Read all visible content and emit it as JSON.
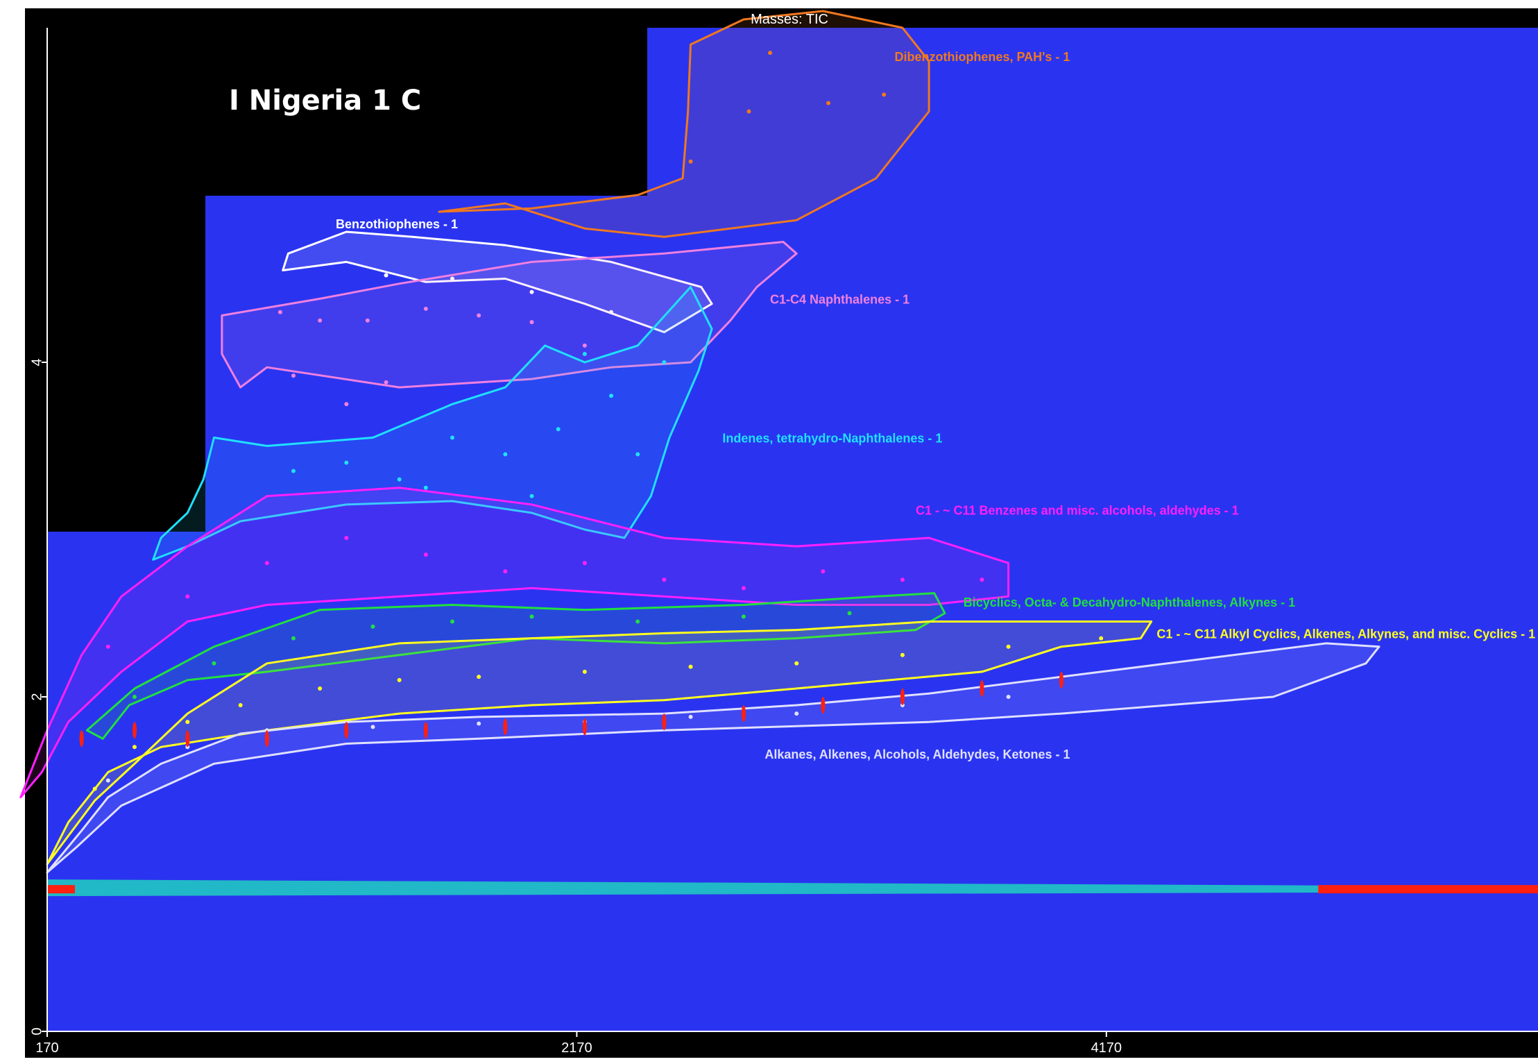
{
  "header": {
    "masses_label": "Masses: TIC"
  },
  "sample": {
    "name": "I Nigeria 1 C"
  },
  "colors": {
    "background": "#2a34f0",
    "frame": "#000000",
    "axis": "#ffffff"
  },
  "chart_data": {
    "type": "heatmap",
    "title": "Masses: TIC",
    "xlabel": "",
    "ylabel": "",
    "xlim": [
      170,
      5800
    ],
    "ylim": [
      0,
      6
    ],
    "x_ticks": [
      {
        "value": 170,
        "label": "170"
      },
      {
        "value": 2170,
        "label": "2170"
      },
      {
        "value": 4170,
        "label": "4170"
      }
    ],
    "y_ticks": [
      {
        "value": 0,
        "label": "0"
      },
      {
        "value": 2,
        "label": "2"
      },
      {
        "value": 4,
        "label": "4"
      }
    ],
    "grid": false,
    "column_bleed": {
      "line_y": 0.85,
      "hot_start_x": 4970
    },
    "regions": [
      {
        "name": "Dibenzothiophenes, PAH's - 1",
        "color": "#f07820",
        "label_pos": [
          3370,
          5.8
        ],
        "outline": [
          [
            1650,
            4.9
          ],
          [
            1900,
            4.95
          ],
          [
            2200,
            4.8
          ],
          [
            2500,
            4.75
          ],
          [
            3000,
            4.85
          ],
          [
            3300,
            5.1
          ],
          [
            3500,
            5.5
          ],
          [
            3500,
            5.8
          ],
          [
            3400,
            6.0
          ],
          [
            3100,
            6.1
          ],
          [
            2800,
            6.05
          ],
          [
            2600,
            5.9
          ],
          [
            2590,
            5.5
          ],
          [
            2570,
            5.1
          ],
          [
            2400,
            5.0
          ],
          [
            2000,
            4.92
          ]
        ],
        "points": [
          [
            2600,
            5.2
          ],
          [
            2820,
            5.5
          ],
          [
            3120,
            5.55
          ],
          [
            3330,
            5.6
          ],
          [
            2900,
            5.85
          ]
        ]
      },
      {
        "name": "Benzothiophenes - 1",
        "color": "#ffffff",
        "label_pos": [
          1260,
          4.8
        ],
        "outline": [
          [
            1060,
            4.55
          ],
          [
            1300,
            4.6
          ],
          [
            1600,
            4.48
          ],
          [
            1900,
            4.5
          ],
          [
            2200,
            4.35
          ],
          [
            2500,
            4.18
          ],
          [
            2680,
            4.35
          ],
          [
            2640,
            4.45
          ],
          [
            2300,
            4.6
          ],
          [
            1900,
            4.7
          ],
          [
            1550,
            4.75
          ],
          [
            1300,
            4.78
          ],
          [
            1080,
            4.65
          ]
        ],
        "points": [
          [
            1450,
            4.52
          ],
          [
            1700,
            4.5
          ],
          [
            2000,
            4.42
          ],
          [
            2300,
            4.3
          ]
        ]
      },
      {
        "name": "C1-C4 Naphthalenes - 1",
        "color": "#f080e0",
        "label_pos": [
          2900,
          4.35
        ],
        "outline": [
          [
            1000,
            3.97
          ],
          [
            1500,
            3.85
          ],
          [
            2000,
            3.9
          ],
          [
            2300,
            3.97
          ],
          [
            2600,
            4.0
          ],
          [
            2750,
            4.25
          ],
          [
            2850,
            4.45
          ],
          [
            3000,
            4.65
          ],
          [
            2950,
            4.72
          ],
          [
            2500,
            4.65
          ],
          [
            2000,
            4.6
          ],
          [
            1500,
            4.47
          ],
          [
            1200,
            4.38
          ],
          [
            830,
            4.28
          ],
          [
            830,
            4.05
          ],
          [
            900,
            3.85
          ]
        ],
        "points": [
          [
            1050,
            4.3
          ],
          [
            1200,
            4.25
          ],
          [
            1380,
            4.25
          ],
          [
            1600,
            4.32
          ],
          [
            1800,
            4.28
          ],
          [
            2000,
            4.24
          ],
          [
            2200,
            4.1
          ],
          [
            1450,
            3.88
          ],
          [
            1300,
            3.75
          ],
          [
            1100,
            3.92
          ]
        ]
      },
      {
        "name": "Indenes, tetrahydro-Naphthalenes - 1",
        "color": "#20e0ff",
        "label_pos": [
          2720,
          3.52
        ],
        "outline": [
          [
            570,
            2.82
          ],
          [
            700,
            2.9
          ],
          [
            900,
            3.05
          ],
          [
            1300,
            3.15
          ],
          [
            1700,
            3.17
          ],
          [
            2000,
            3.1
          ],
          [
            2200,
            3.0
          ],
          [
            2350,
            2.95
          ],
          [
            2450,
            3.2
          ],
          [
            2520,
            3.55
          ],
          [
            2630,
            3.95
          ],
          [
            2680,
            4.2
          ],
          [
            2600,
            4.45
          ],
          [
            2400,
            4.1
          ],
          [
            2200,
            4.0
          ],
          [
            2050,
            4.1
          ],
          [
            1900,
            3.85
          ],
          [
            1700,
            3.75
          ],
          [
            1400,
            3.55
          ],
          [
            1000,
            3.5
          ],
          [
            800,
            3.55
          ],
          [
            760,
            3.3
          ],
          [
            700,
            3.1
          ],
          [
            600,
            2.95
          ]
        ],
        "points": [
          [
            1100,
            3.35
          ],
          [
            1300,
            3.4
          ],
          [
            1500,
            3.3
          ],
          [
            1700,
            3.55
          ],
          [
            1900,
            3.45
          ],
          [
            2100,
            3.6
          ],
          [
            2300,
            3.8
          ],
          [
            2500,
            4.0
          ],
          [
            1600,
            3.25
          ],
          [
            2000,
            3.2
          ],
          [
            2400,
            3.45
          ],
          [
            2200,
            4.05
          ]
        ]
      },
      {
        "name": "C1 - ~ C11 Benzenes and misc. alcohols, aldehydes - 1",
        "color": "#ff20ff",
        "label_pos": [
          3450,
          3.09
        ],
        "outline": [
          [
            70,
            1.4
          ],
          [
            170,
            1.8
          ],
          [
            300,
            2.25
          ],
          [
            450,
            2.6
          ],
          [
            700,
            2.9
          ],
          [
            1000,
            3.2
          ],
          [
            1500,
            3.25
          ],
          [
            2000,
            3.15
          ],
          [
            2500,
            2.95
          ],
          [
            3000,
            2.9
          ],
          [
            3500,
            2.95
          ],
          [
            3800,
            2.8
          ],
          [
            3800,
            2.6
          ],
          [
            3500,
            2.55
          ],
          [
            3000,
            2.55
          ],
          [
            2500,
            2.6
          ],
          [
            2000,
            2.65
          ],
          [
            1500,
            2.6
          ],
          [
            1000,
            2.55
          ],
          [
            700,
            2.45
          ],
          [
            450,
            2.15
          ],
          [
            250,
            1.85
          ],
          [
            150,
            1.55
          ]
        ],
        "points": [
          [
            400,
            2.3
          ],
          [
            700,
            2.6
          ],
          [
            1000,
            2.8
          ],
          [
            1300,
            2.95
          ],
          [
            1600,
            2.85
          ],
          [
            1900,
            2.75
          ],
          [
            2200,
            2.8
          ],
          [
            2500,
            2.7
          ],
          [
            2800,
            2.65
          ],
          [
            3100,
            2.75
          ],
          [
            3400,
            2.7
          ],
          [
            3700,
            2.7
          ]
        ]
      },
      {
        "name": "Bicyclics, Octa- & Decahydro-Naphthalenes, Alkynes - 1",
        "color": "#20e040",
        "label_pos": [
          3630,
          2.54
        ],
        "outline": [
          [
            320,
            1.8
          ],
          [
            500,
            2.05
          ],
          [
            800,
            2.3
          ],
          [
            1200,
            2.52
          ],
          [
            1700,
            2.55
          ],
          [
            2200,
            2.52
          ],
          [
            2800,
            2.55
          ],
          [
            3300,
            2.6
          ],
          [
            3520,
            2.62
          ],
          [
            3560,
            2.5
          ],
          [
            3450,
            2.4
          ],
          [
            3000,
            2.35
          ],
          [
            2500,
            2.32
          ],
          [
            2000,
            2.35
          ],
          [
            1500,
            2.25
          ],
          [
            1000,
            2.15
          ],
          [
            700,
            2.1
          ],
          [
            480,
            1.95
          ],
          [
            380,
            1.75
          ]
        ],
        "points": [
          [
            500,
            2.0
          ],
          [
            800,
            2.2
          ],
          [
            1100,
            2.35
          ],
          [
            1400,
            2.42
          ],
          [
            1700,
            2.45
          ],
          [
            2000,
            2.48
          ],
          [
            2400,
            2.45
          ],
          [
            2800,
            2.48
          ],
          [
            3200,
            2.5
          ]
        ]
      },
      {
        "name": "C1 - ~ C11 Alkyl Cyclics, Alkenes, Alkynes, and misc. Cyclics - 1",
        "color": "#ffff20",
        "label_pos": [
          4360,
          2.35
        ],
        "outline": [
          [
            170,
            1.0
          ],
          [
            350,
            1.38
          ],
          [
            500,
            1.6
          ],
          [
            700,
            1.9
          ],
          [
            1000,
            2.2
          ],
          [
            1500,
            2.32
          ],
          [
            2000,
            2.35
          ],
          [
            2500,
            2.38
          ],
          [
            3000,
            2.4
          ],
          [
            3500,
            2.45
          ],
          [
            4000,
            2.45
          ],
          [
            4340,
            2.45
          ],
          [
            4300,
            2.35
          ],
          [
            4000,
            2.3
          ],
          [
            3700,
            2.15
          ],
          [
            3000,
            2.05
          ],
          [
            2500,
            1.98
          ],
          [
            2000,
            1.95
          ],
          [
            1500,
            1.9
          ],
          [
            1000,
            1.8
          ],
          [
            600,
            1.7
          ],
          [
            400,
            1.55
          ],
          [
            250,
            1.25
          ]
        ],
        "points": [
          [
            350,
            1.45
          ],
          [
            500,
            1.7
          ],
          [
            700,
            1.85
          ],
          [
            900,
            1.95
          ],
          [
            1200,
            2.05
          ],
          [
            1500,
            2.1
          ],
          [
            1800,
            2.12
          ],
          [
            2200,
            2.15
          ],
          [
            2600,
            2.18
          ],
          [
            3000,
            2.2
          ],
          [
            3400,
            2.25
          ],
          [
            3800,
            2.3
          ],
          [
            4150,
            2.35
          ]
        ]
      },
      {
        "name": "Alkanes, Alkenes, Alcohols, Aldehydes, Ketones - 1",
        "color": "#e0e0ff",
        "label_pos": [
          2880,
          1.63
        ],
        "outline": [
          [
            170,
            0.95
          ],
          [
            300,
            1.2
          ],
          [
            400,
            1.4
          ],
          [
            600,
            1.6
          ],
          [
            900,
            1.78
          ],
          [
            1300,
            1.85
          ],
          [
            1800,
            1.88
          ],
          [
            2500,
            1.9
          ],
          [
            3000,
            1.95
          ],
          [
            3500,
            2.02
          ],
          [
            4000,
            2.12
          ],
          [
            4500,
            2.22
          ],
          [
            5000,
            2.32
          ],
          [
            5200,
            2.3
          ],
          [
            5150,
            2.2
          ],
          [
            4800,
            2.0
          ],
          [
            4000,
            1.9
          ],
          [
            3500,
            1.85
          ],
          [
            2500,
            1.8
          ],
          [
            1800,
            1.75
          ],
          [
            1300,
            1.72
          ],
          [
            800,
            1.6
          ],
          [
            450,
            1.35
          ],
          [
            280,
            1.1
          ]
        ],
        "points": [
          [
            400,
            1.5
          ],
          [
            700,
            1.7
          ],
          [
            1000,
            1.8
          ],
          [
            1400,
            1.82
          ],
          [
            1800,
            1.84
          ],
          [
            2200,
            1.85
          ],
          [
            2600,
            1.88
          ],
          [
            3000,
            1.9
          ],
          [
            3400,
            1.95
          ],
          [
            3800,
            2.0
          ]
        ]
      }
    ],
    "peaks": [
      {
        "x": 300,
        "y": 1.75
      },
      {
        "x": 500,
        "y": 1.8
      },
      {
        "x": 700,
        "y": 1.75
      },
      {
        "x": 1000,
        "y": 1.75
      },
      {
        "x": 1300,
        "y": 1.8
      },
      {
        "x": 1600,
        "y": 1.8
      },
      {
        "x": 1900,
        "y": 1.82
      },
      {
        "x": 2200,
        "y": 1.82
      },
      {
        "x": 2500,
        "y": 1.85
      },
      {
        "x": 2800,
        "y": 1.9
      },
      {
        "x": 3100,
        "y": 1.95
      },
      {
        "x": 3400,
        "y": 2.0
      },
      {
        "x": 3700,
        "y": 2.05
      },
      {
        "x": 4000,
        "y": 2.1
      }
    ]
  }
}
